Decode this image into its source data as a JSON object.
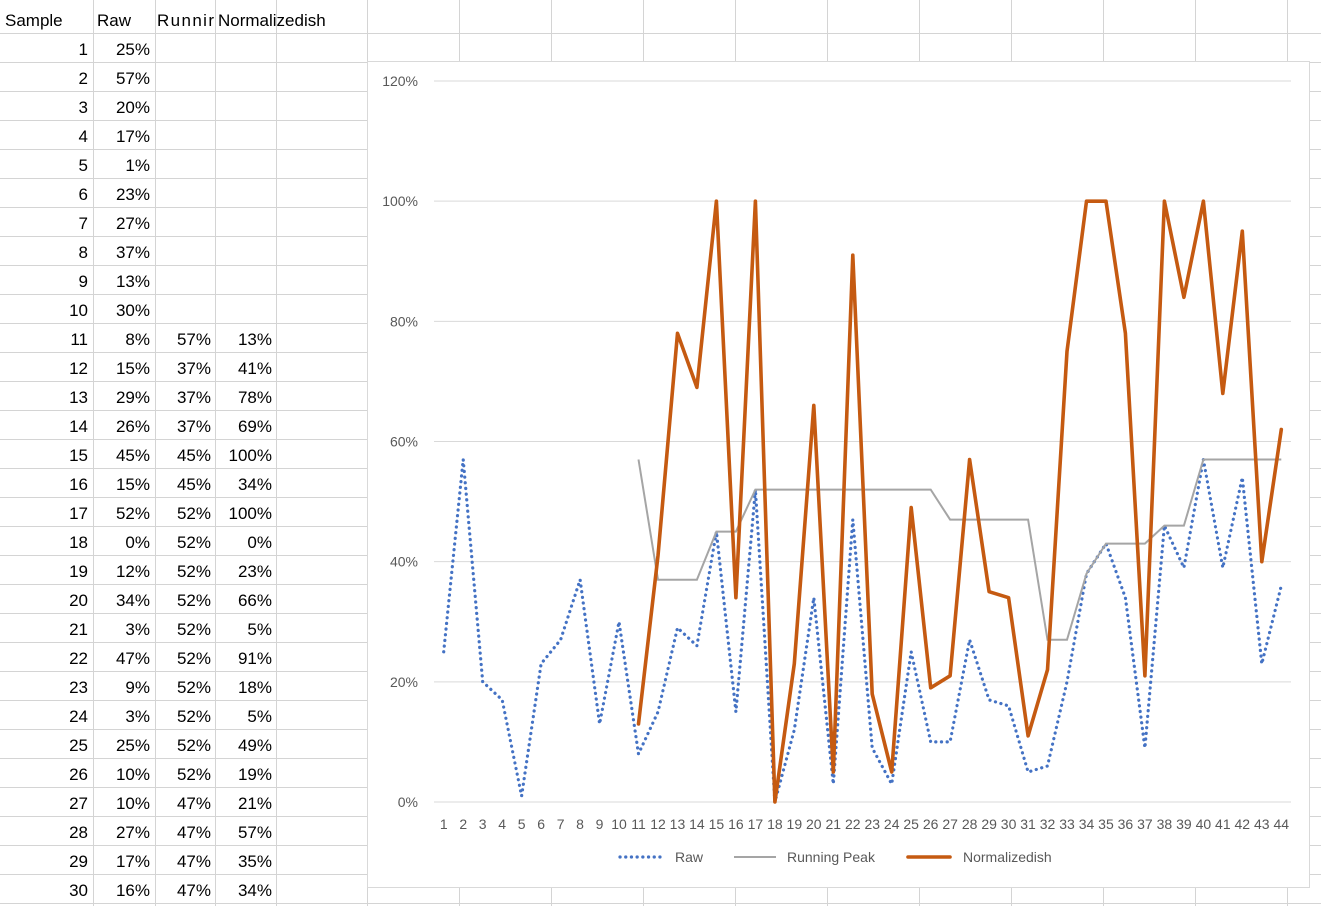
{
  "sheet": {
    "headers": [
      "Sample",
      "Raw",
      "Runnir",
      "Normalizedish"
    ],
    "rows": [
      [
        "1",
        "25%",
        "",
        ""
      ],
      [
        "2",
        "57%",
        "",
        ""
      ],
      [
        "3",
        "20%",
        "",
        ""
      ],
      [
        "4",
        "17%",
        "",
        ""
      ],
      [
        "5",
        "1%",
        "",
        ""
      ],
      [
        "6",
        "23%",
        "",
        ""
      ],
      [
        "7",
        "27%",
        "",
        ""
      ],
      [
        "8",
        "37%",
        "",
        ""
      ],
      [
        "9",
        "13%",
        "",
        ""
      ],
      [
        "10",
        "30%",
        "",
        ""
      ],
      [
        "11",
        "8%",
        "57%",
        "13%"
      ],
      [
        "12",
        "15%",
        "37%",
        "41%"
      ],
      [
        "13",
        "29%",
        "37%",
        "78%"
      ],
      [
        "14",
        "26%",
        "37%",
        "69%"
      ],
      [
        "15",
        "45%",
        "45%",
        "100%"
      ],
      [
        "16",
        "15%",
        "45%",
        "34%"
      ],
      [
        "17",
        "52%",
        "52%",
        "100%"
      ],
      [
        "18",
        "0%",
        "52%",
        "0%"
      ],
      [
        "19",
        "12%",
        "52%",
        "23%"
      ],
      [
        "20",
        "34%",
        "52%",
        "66%"
      ],
      [
        "21",
        "3%",
        "52%",
        "5%"
      ],
      [
        "22",
        "47%",
        "52%",
        "91%"
      ],
      [
        "23",
        "9%",
        "52%",
        "18%"
      ],
      [
        "24",
        "3%",
        "52%",
        "5%"
      ],
      [
        "25",
        "25%",
        "52%",
        "49%"
      ],
      [
        "26",
        "10%",
        "52%",
        "19%"
      ],
      [
        "27",
        "10%",
        "47%",
        "21%"
      ],
      [
        "28",
        "27%",
        "47%",
        "57%"
      ],
      [
        "29",
        "17%",
        "47%",
        "35%"
      ],
      [
        "30",
        "16%",
        "47%",
        "34%"
      ]
    ]
  },
  "chart_data": {
    "type": "line",
    "categories": [
      "1",
      "2",
      "3",
      "4",
      "5",
      "6",
      "7",
      "8",
      "9",
      "10",
      "11",
      "12",
      "13",
      "14",
      "15",
      "16",
      "17",
      "18",
      "19",
      "20",
      "21",
      "22",
      "23",
      "24",
      "25",
      "26",
      "27",
      "28",
      "29",
      "30",
      "31",
      "32",
      "33",
      "34",
      "35",
      "36",
      "37",
      "38",
      "39",
      "40",
      "41",
      "42",
      "43",
      "44"
    ],
    "y_ticks": [
      "0%",
      "20%",
      "40%",
      "60%",
      "80%",
      "100%",
      "120%"
    ],
    "ylim": [
      0,
      1.2
    ],
    "grid": true,
    "legend_position": "bottom",
    "series": [
      {
        "name": "Raw",
        "color": "#4472c4",
        "style": "dotted",
        "values": [
          0.25,
          0.57,
          0.2,
          0.17,
          0.01,
          0.23,
          0.27,
          0.37,
          0.13,
          0.3,
          0.08,
          0.15,
          0.29,
          0.26,
          0.45,
          0.15,
          0.52,
          0.0,
          0.12,
          0.34,
          0.03,
          0.47,
          0.09,
          0.03,
          0.25,
          0.1,
          0.1,
          0.27,
          0.17,
          0.16,
          0.05,
          0.06,
          0.2,
          0.38,
          0.43,
          0.34,
          0.09,
          0.46,
          0.39,
          0.57,
          0.39,
          0.54,
          0.23,
          0.36
        ]
      },
      {
        "name": "Running Peak",
        "color": "#a5a5a5",
        "style": "solid",
        "values": [
          null,
          null,
          null,
          null,
          null,
          null,
          null,
          null,
          null,
          null,
          0.57,
          0.37,
          0.37,
          0.37,
          0.45,
          0.45,
          0.52,
          0.52,
          0.52,
          0.52,
          0.52,
          0.52,
          0.52,
          0.52,
          0.52,
          0.52,
          0.47,
          0.47,
          0.47,
          0.47,
          0.47,
          0.27,
          0.27,
          0.38,
          0.43,
          0.43,
          0.43,
          0.46,
          0.46,
          0.57,
          0.57,
          0.57,
          0.57,
          0.57
        ]
      },
      {
        "name": "Normalizedish",
        "color": "#c55a11",
        "style": "solid",
        "values": [
          null,
          null,
          null,
          null,
          null,
          null,
          null,
          null,
          null,
          null,
          0.13,
          0.41,
          0.78,
          0.69,
          1.0,
          0.34,
          1.0,
          0.0,
          0.23,
          0.66,
          0.05,
          0.91,
          0.18,
          0.05,
          0.49,
          0.19,
          0.21,
          0.57,
          0.35,
          0.34,
          0.11,
          0.22,
          0.75,
          1.0,
          1.0,
          0.78,
          0.21,
          1.0,
          0.84,
          1.0,
          0.68,
          0.95,
          0.4,
          0.62
        ]
      }
    ]
  }
}
